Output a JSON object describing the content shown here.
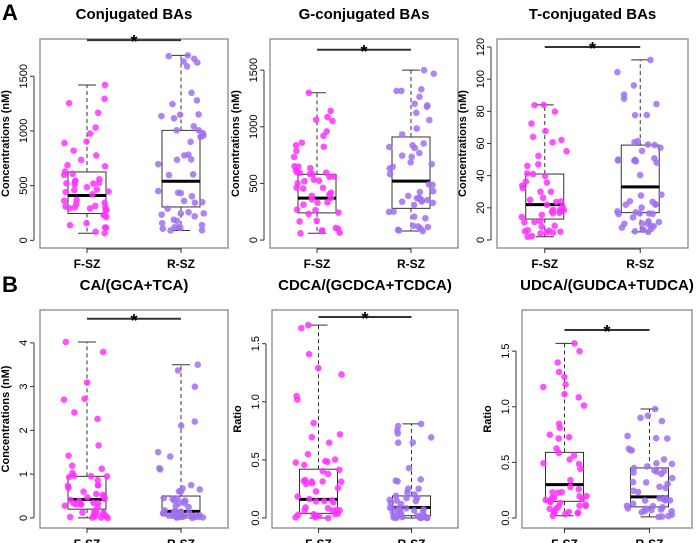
{
  "panel_letters": [
    "A",
    "B"
  ],
  "colors": {
    "F-SZ": "#ff33ff",
    "R-SZ": "#a070f0"
  },
  "chart_data": [
    {
      "type": "box",
      "title": "Conjugated BAs",
      "ylabel": "Concentrations (nM)",
      "categories": [
        "F-SZ",
        "R-SZ"
      ],
      "ylim": [
        -70,
        1840
      ],
      "yticks": [
        0,
        500,
        1000,
        1500
      ],
      "yticklabels": [
        "0",
        "500",
        "1000",
        "1500"
      ],
      "boxes": [
        {
          "min": 65,
          "q1": 245,
          "median": 410,
          "q3": 625,
          "max": 1420
        },
        {
          "min": 90,
          "q1": 305,
          "median": 540,
          "q3": 1005,
          "max": 1690
        }
      ],
      "significance": {
        "label": "*",
        "y": 1830
      }
    },
    {
      "type": "box",
      "title": "G-conjugated BAs",
      "ylabel": "Concentrations (nM)",
      "categories": [
        "F-SZ",
        "R-SZ"
      ],
      "ylim": [
        -70,
        1775
      ],
      "yticks": [
        0,
        500,
        1000,
        1500
      ],
      "yticklabels": [
        "0",
        "500",
        "1000",
        "1500"
      ],
      "boxes": [
        {
          "min": 60,
          "q1": 240,
          "median": 370,
          "q3": 580,
          "max": 1300
        },
        {
          "min": 80,
          "q1": 280,
          "median": 520,
          "q3": 910,
          "max": 1500
        }
      ],
      "significance": {
        "label": "*",
        "y": 1680
      }
    },
    {
      "type": "box",
      "title": "T-conjugated BAs",
      "ylabel": "Concentrations (nM)",
      "categories": [
        "F-SZ",
        "R-SZ"
      ],
      "ylim": [
        -5,
        125
      ],
      "yticks": [
        0,
        20,
        40,
        60,
        80,
        100,
        120
      ],
      "yticklabels": [
        "0",
        "20",
        "40",
        "60",
        "80",
        "100",
        "120"
      ],
      "boxes": [
        {
          "min": 2,
          "q1": 13,
          "median": 22,
          "q3": 41,
          "max": 84
        },
        {
          "min": 5,
          "q1": 17,
          "median": 33,
          "q3": 59,
          "max": 112
        }
      ],
      "significance": {
        "label": "*",
        "y": 120
      }
    },
    {
      "type": "box",
      "title": "CA/(GCA+TCA)",
      "ylabel": "Concentrations (nM)",
      "categories": [
        "F-SZ",
        "R-SZ"
      ],
      "ylim": [
        -0.23,
        4.75
      ],
      "yticks": [
        0,
        1,
        2,
        3,
        4
      ],
      "yticklabels": [
        "0",
        "1",
        "2",
        "3",
        "4"
      ],
      "boxes": [
        {
          "min": 0,
          "q1": 0.2,
          "median": 0.42,
          "q3": 0.95,
          "max": 4.02
        },
        {
          "min": 0,
          "q1": 0.05,
          "median": 0.15,
          "q3": 0.5,
          "max": 3.5
        }
      ],
      "significance": {
        "label": "*",
        "y": 4.55
      }
    },
    {
      "type": "box",
      "title": "CDCA/(GCDCA+TCDCA)",
      "ylabel": "Ratio",
      "categories": [
        "F-SZ",
        "R-SZ"
      ],
      "ylim": [
        -0.086,
        1.79
      ],
      "yticks": [
        0,
        0.5,
        1,
        1.5
      ],
      "yticklabels": [
        "0.0",
        "0.5",
        "1.0",
        "1.5"
      ],
      "boxes": [
        {
          "min": 0,
          "q1": 0.04,
          "median": 0.16,
          "q3": 0.42,
          "max": 1.66
        },
        {
          "min": 0,
          "q1": 0.02,
          "median": 0.09,
          "q3": 0.19,
          "max": 0.81
        }
      ],
      "significance": {
        "label": "*",
        "y": 1.73
      }
    },
    {
      "type": "box",
      "title": "UDCA/(GUDCA+TUDCA)",
      "ylabel": "Ratio",
      "categories": [
        "F-SZ",
        "R-SZ"
      ],
      "ylim": [
        -0.09,
        1.87
      ],
      "yticks": [
        0,
        0.5,
        1,
        1.5
      ],
      "yticklabels": [
        "0.0",
        "0.5",
        "1.0",
        "1.5"
      ],
      "boxes": [
        {
          "min": 0.02,
          "q1": 0.15,
          "median": 0.3,
          "q3": 0.59,
          "max": 1.57
        },
        {
          "min": 0.01,
          "q1": 0.1,
          "median": 0.19,
          "q3": 0.45,
          "max": 0.98
        }
      ],
      "significance": {
        "label": "*",
        "y": 1.69
      }
    }
  ]
}
